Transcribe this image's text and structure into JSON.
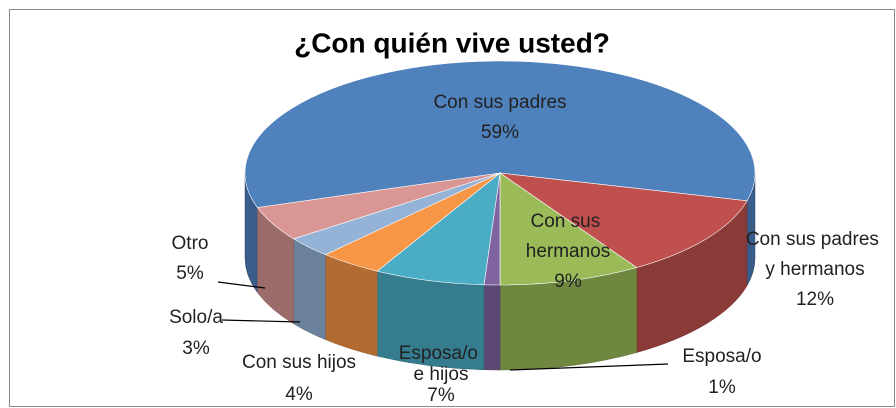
{
  "chart_data": {
    "type": "pie",
    "title": "¿Con quién vive usted?",
    "categories": [
      "Con sus padres",
      "Con sus padres y hermanos",
      "Con sus hermanos",
      "Esposa/o",
      "Esposa/o e hijos",
      "Con sus hijos",
      "Solo/a",
      "Otro"
    ],
    "values": [
      59,
      12,
      9,
      1,
      7,
      4,
      3,
      5
    ],
    "value_labels": [
      "59%",
      "12%",
      "9%",
      "1%",
      "7%",
      "4%",
      "3%",
      "5%"
    ],
    "colors": [
      "#4F81BD",
      "#C0504D",
      "#9BBB59",
      "#8064A2",
      "#4BACC6",
      "#F79646",
      "#95B3D7",
      "#D99694"
    ]
  }
}
